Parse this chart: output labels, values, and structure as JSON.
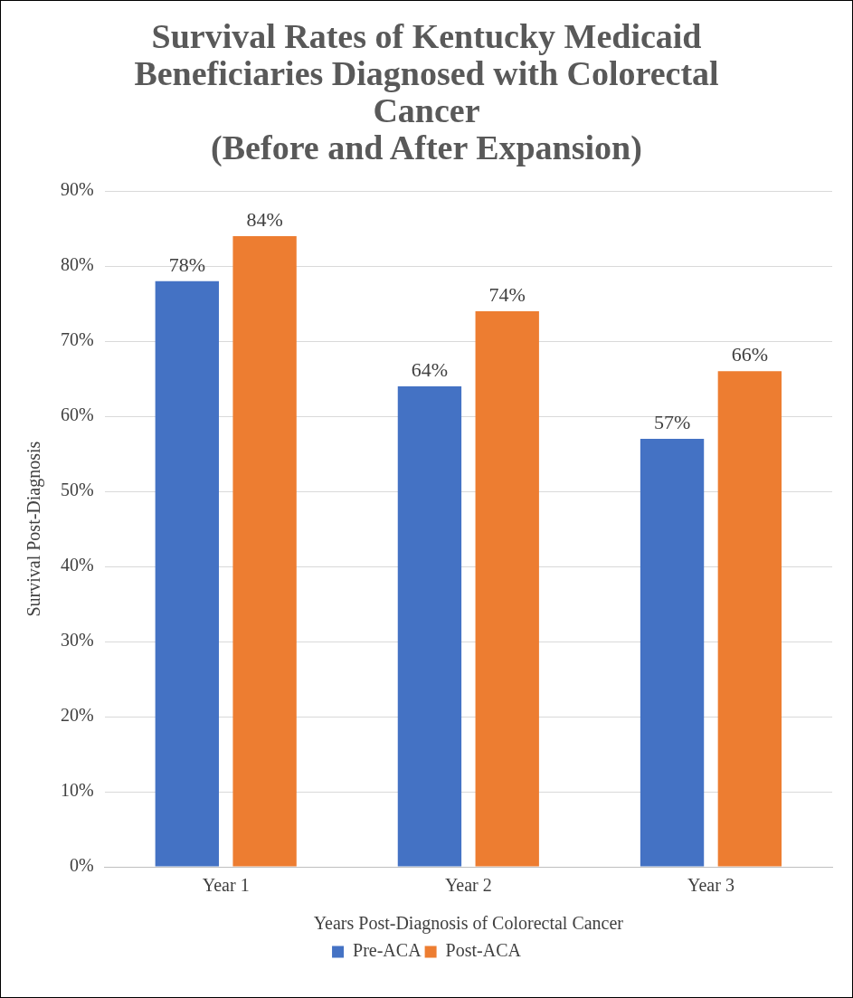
{
  "chart_data": {
    "type": "bar",
    "title": "Survival Rates of Kentucky Medicaid Beneficiaries Diagnosed with Colorectal Cancer",
    "subtitle": "(Before and After Expansion)",
    "xlabel": "Years Post-Diagnosis of Colorectal Cancer",
    "ylabel": "Survival Post-Diagnosis",
    "categories": [
      "Year 1",
      "Year 2",
      "Year 3"
    ],
    "series": [
      {
        "name": "Pre-ACA",
        "color": "#4472c4",
        "values": [
          78,
          64,
          57
        ],
        "value_labels": [
          "78%",
          "64%",
          "57%"
        ]
      },
      {
        "name": "Post-ACA",
        "color": "#ed7d31",
        "values": [
          84,
          74,
          66
        ],
        "value_labels": [
          "84%",
          "74%",
          "66%"
        ]
      }
    ],
    "ylim": [
      0,
      90
    ],
    "yticks": [
      {
        "value": 0,
        "label": "0%"
      },
      {
        "value": 10,
        "label": "10%"
      },
      {
        "value": 20,
        "label": "20%"
      },
      {
        "value": 30,
        "label": "30%"
      },
      {
        "value": 40,
        "label": "40%"
      },
      {
        "value": 50,
        "label": "50%"
      },
      {
        "value": 60,
        "label": "60%"
      },
      {
        "value": 70,
        "label": "70%"
      },
      {
        "value": 80,
        "label": "80%"
      },
      {
        "value": 90,
        "label": "90%"
      }
    ],
    "grid": "y",
    "legend": "bottom"
  }
}
